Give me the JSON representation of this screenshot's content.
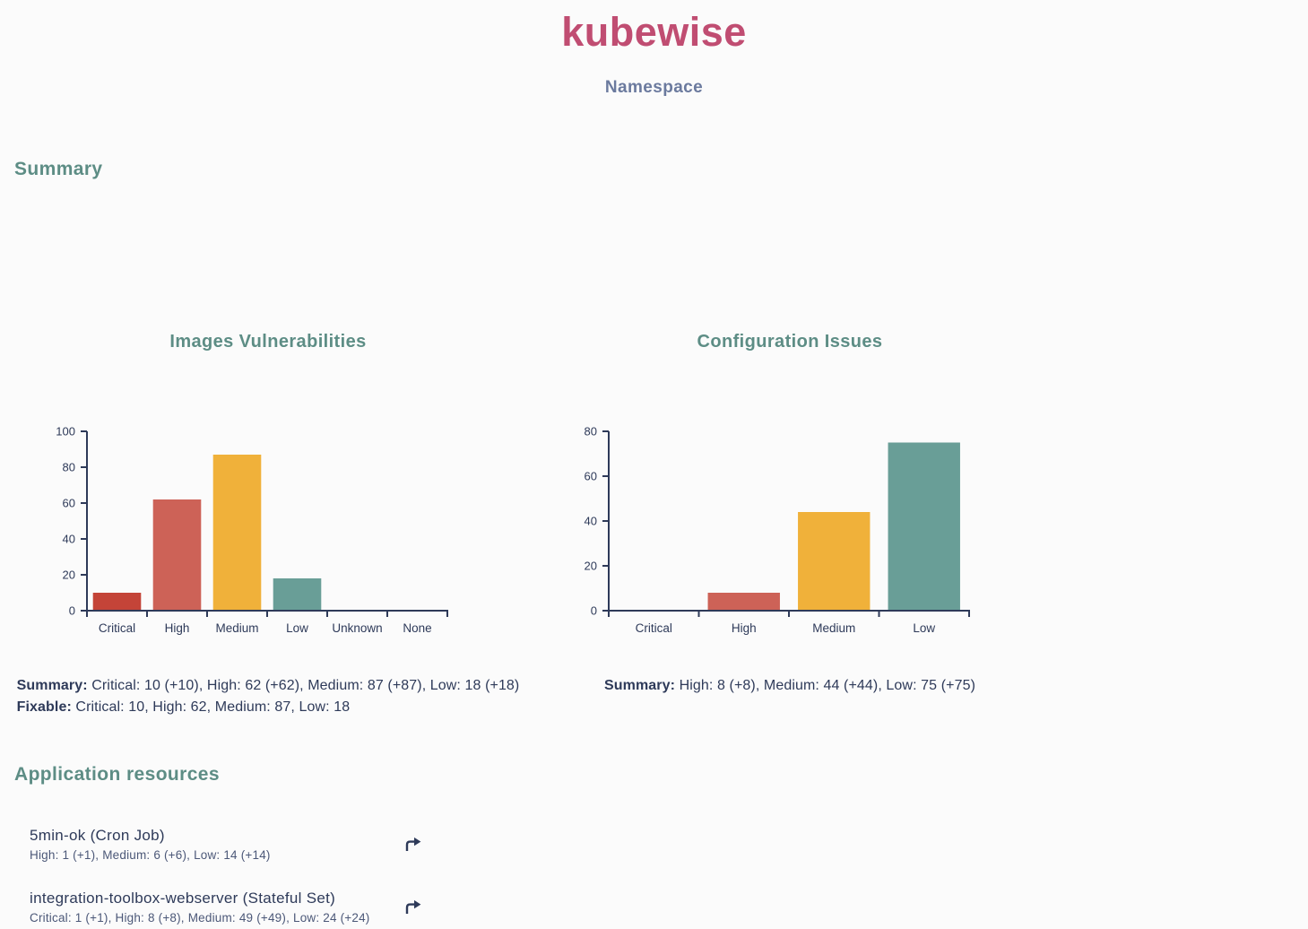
{
  "header": {
    "app_title": "kubewise",
    "page_subtitle": "Namespace"
  },
  "colors": {
    "brand_pink": "#c04d72",
    "heading_teal": "#5d8d85",
    "text_navy": "#2e3a59",
    "subtitle_blue_gray": "#6b7a9e",
    "background": "#fbfbfb",
    "severity_critical": "#c44438",
    "severity_high": "#cd6257",
    "severity_medium": "#f0b13a",
    "severity_low": "#699e97"
  },
  "severity_colors": {
    "Critical": "#c44438",
    "High": "#cd6257",
    "Medium": "#f0b13a",
    "Low": "#699e97"
  },
  "sections": {
    "summary_heading": "Summary",
    "application_resources_heading": "Application resources"
  },
  "chart_data": [
    {
      "type": "bar",
      "title": "Images Vulnerabilities",
      "categories": [
        "Critical",
        "High",
        "Medium",
        "Low",
        "Unknown",
        "None"
      ],
      "values": [
        10,
        62,
        87,
        18,
        0,
        0
      ],
      "ylim": [
        0,
        100
      ],
      "yticks": [
        0,
        20,
        40,
        60,
        80,
        100
      ],
      "xlabel": "",
      "ylabel": "",
      "grid": false,
      "legend": false,
      "summary_label": "Summary:",
      "summary_text": "Critical: 10 (+10), High: 62 (+62), Medium: 87 (+87), Low: 18 (+18)",
      "fixable_label": "Fixable:",
      "fixable_text": "Critical: 10, High: 62, Medium: 87, Low: 18"
    },
    {
      "type": "bar",
      "title": "Configuration Issues",
      "categories": [
        "Critical",
        "High",
        "Medium",
        "Low"
      ],
      "values": [
        0,
        8,
        44,
        75
      ],
      "ylim": [
        0,
        80
      ],
      "yticks": [
        0,
        20,
        40,
        60,
        80
      ],
      "xlabel": "",
      "ylabel": "",
      "grid": false,
      "legend": false,
      "summary_label": "Summary:",
      "summary_text": "High: 8 (+8), Medium: 44 (+44), Low: 75 (+75)"
    }
  ],
  "application_resources": {
    "open_icon": "arrow-turn-right",
    "items": [
      {
        "title": "5min-ok (Cron Job)",
        "severity_summary": "High: 1 (+1), Medium: 6 (+6), Low: 14 (+14)"
      },
      {
        "title": "integration-toolbox-webserver (Stateful Set)",
        "severity_summary": "Critical: 1 (+1), High: 8 (+8), Medium: 49 (+49), Low: 24 (+24)"
      }
    ]
  }
}
